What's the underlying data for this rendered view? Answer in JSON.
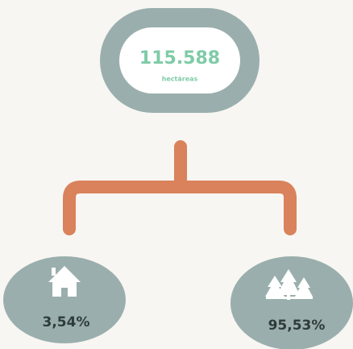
{
  "root": {
    "value": "115.588",
    "unit": "hectáreas"
  },
  "children": [
    {
      "label": "3,54%"
    },
    {
      "label": "95,53%"
    }
  ]
}
